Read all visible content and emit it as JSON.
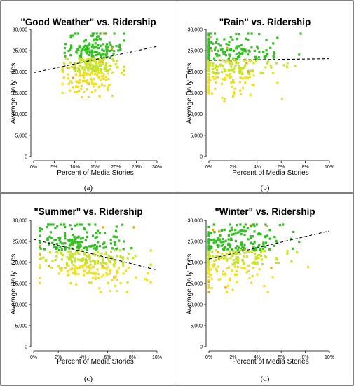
{
  "chart_data": [
    {
      "type": "scatter",
      "title": "\"Good Weather\" vs. Ridership",
      "xlabel": "Percent of Media Stories",
      "ylabel": "Average Daily Trips",
      "panel_label": "(a)",
      "xlim": [
        0,
        30
      ],
      "ylim": [
        0,
        30000
      ],
      "x_ticks": [
        "0%",
        "5%",
        "10%",
        "15%",
        "20%",
        "25%",
        "30%"
      ],
      "y_ticks": [
        "0",
        "5,000",
        "10,000",
        "15,000",
        "20,000",
        "25,000",
        "30,000"
      ],
      "trend": {
        "x": [
          0,
          30
        ],
        "y": [
          19800,
          26000
        ],
        "style": "dashed"
      },
      "point_cloud": {
        "x_range": [
          7,
          22
        ],
        "y_range": [
          14000,
          29000
        ],
        "center_x": 14,
        "center_y": 22000,
        "count": 360
      }
    },
    {
      "type": "scatter",
      "title": "\"Rain\" vs. Ridership",
      "xlabel": "Percent of Media Stories",
      "ylabel": "Average Daily Trips",
      "panel_label": "(b)",
      "xlim": [
        0,
        10
      ],
      "ylim": [
        0,
        30000
      ],
      "x_ticks": [
        "0%",
        "2%",
        "4%",
        "6%",
        "8%",
        "10%"
      ],
      "y_ticks": [
        "0",
        "5,000",
        "10,000",
        "15,000",
        "20,000",
        "25,000",
        "30,000"
      ],
      "trend": {
        "x": [
          0,
          10
        ],
        "y": [
          22700,
          23100
        ],
        "style": "dashed"
      },
      "point_cloud": {
        "x_range": [
          0,
          10
        ],
        "y_range": [
          13000,
          29000
        ],
        "center_x": 1.5,
        "center_y": 22000,
        "count": 340
      }
    },
    {
      "type": "scatter",
      "title": "\"Summer\" vs. Ridership",
      "xlabel": "Percent of Media Stories",
      "ylabel": "Average Daily Trips",
      "panel_label": "(c)",
      "xlim": [
        0,
        10
      ],
      "ylim": [
        0,
        30000
      ],
      "x_ticks": [
        "0%",
        "2%",
        "4%",
        "6%",
        "8%",
        "10%"
      ],
      "y_ticks": [
        "0",
        "5,000",
        "10,000",
        "15,000",
        "20,000",
        "25,000",
        "30,000"
      ],
      "trend": {
        "x": [
          0,
          10
        ],
        "y": [
          25500,
          18200
        ],
        "style": "dashed"
      },
      "point_cloud": {
        "x_range": [
          0.5,
          9.5
        ],
        "y_range": [
          13000,
          29000
        ],
        "center_x": 4.2,
        "center_y": 22000,
        "count": 380
      }
    },
    {
      "type": "scatter",
      "title": "\"Winter\" vs. Ridership",
      "xlabel": "Percent of Media Stories",
      "ylabel": "Average Daily Trips",
      "panel_label": "(d)",
      "xlim": [
        0,
        10
      ],
      "ylim": [
        0,
        30000
      ],
      "x_ticks": [
        "0%",
        "2%",
        "4%",
        "6%",
        "8%",
        "10%"
      ],
      "y_ticks": [
        "0",
        "5,000",
        "10,000",
        "15,000",
        "20,000",
        "25,000",
        "30,000"
      ],
      "trend": {
        "x": [
          0,
          10
        ],
        "y": [
          20800,
          27500
        ],
        "style": "dashed"
      },
      "point_cloud": {
        "x_range": [
          0,
          9.5
        ],
        "y_range": [
          13000,
          29000
        ],
        "center_x": 1.8,
        "center_y": 22000,
        "count": 360
      }
    }
  ],
  "colors": {
    "low": "#f0e020",
    "mid": "#c8e428",
    "high": "#30c020",
    "accent": "#f0a020",
    "trend": "#000000",
    "frame": "#000000"
  }
}
